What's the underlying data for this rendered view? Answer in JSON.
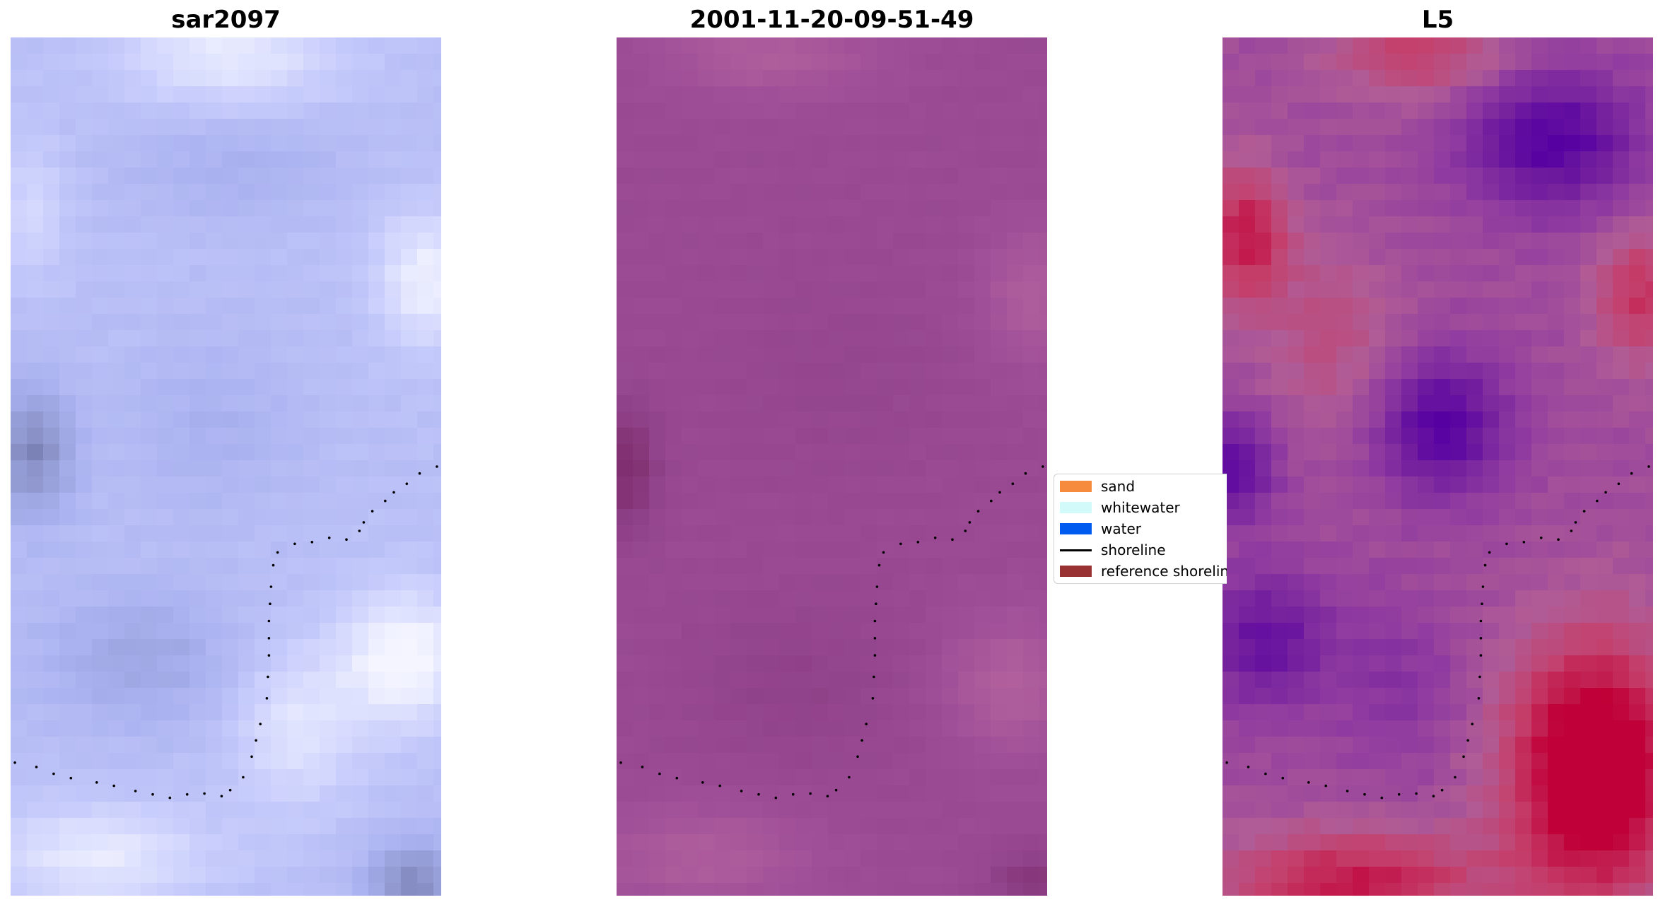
{
  "panels": [
    {
      "id": "sar",
      "title": "sar2097",
      "palette": "blue"
    },
    {
      "id": "date",
      "title": "2001-11-20-09-51-49",
      "palette": "purple"
    },
    {
      "id": "l5",
      "title": "L5",
      "palette": "magenta"
    }
  ],
  "legend": {
    "placement": "center-right",
    "items": [
      {
        "label": "sand",
        "color": "#f68a3d",
        "kind": "patch"
      },
      {
        "label": "whitewater",
        "color": "#d2fafa",
        "kind": "patch"
      },
      {
        "label": "water",
        "color": "#005cf0",
        "kind": "patch"
      },
      {
        "label": "shoreline",
        "color": "#000000",
        "kind": "line"
      },
      {
        "label": "reference shoreline",
        "color": "#993333",
        "kind": "patch"
      }
    ]
  }
}
